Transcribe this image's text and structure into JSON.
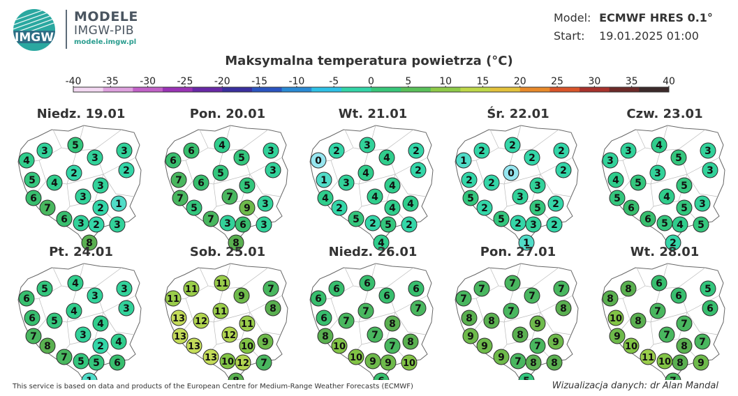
{
  "header": {
    "brand_name": "MODELE",
    "brand_sub": "IMGW-PIB",
    "brand_url": "modele.imgw.pl",
    "logo_text": "IMGW",
    "model_label": "Model:",
    "model_value": "ECMWF HRES 0.1°",
    "start_label": "Start:",
    "start_value": "19.01.2025 01:00"
  },
  "title": "Maksymalna temperatura powietrza (°C)",
  "scale": {
    "ticks": [
      -40,
      -35,
      -30,
      -25,
      -20,
      -15,
      -10,
      -5,
      0,
      5,
      10,
      15,
      20,
      25,
      30,
      35,
      40
    ],
    "colors": [
      "#f3d8f2",
      "#dea1de",
      "#c262c8",
      "#9a33b5",
      "#6828a6",
      "#3a2f9e",
      "#2b54c0",
      "#2a8ad4",
      "#2fc1e6",
      "#33d5a8",
      "#38c77a",
      "#5ac15a",
      "#8fcb4a",
      "#bfd84a",
      "#e3c23c",
      "#e88a2b",
      "#d9552a",
      "#a8322c",
      "#6d2a28",
      "#3b2a2a"
    ]
  },
  "maps": [
    {
      "label": "Niedz. 19.01",
      "values": [
        3,
        5,
        3,
        4,
        3,
        2,
        2,
        5,
        4,
        3,
        6,
        3,
        7,
        2,
        1,
        6,
        3,
        2,
        3,
        8
      ]
    },
    {
      "label": "Pon. 20.01",
      "values": [
        6,
        4,
        3,
        6,
        5,
        3,
        5,
        7,
        6,
        5,
        7,
        7,
        5,
        9,
        3,
        7,
        3,
        6,
        3,
        8
      ]
    },
    {
      "label": "Wt. 21.01",
      "values": [
        2,
        3,
        2,
        0,
        4,
        2,
        4,
        1,
        3,
        4,
        4,
        4,
        2,
        4,
        4,
        5,
        2,
        5,
        2,
        4
      ]
    },
    {
      "label": "Śr. 22.01",
      "values": [
        2,
        2,
        2,
        1,
        2,
        2,
        0,
        2,
        2,
        3,
        5,
        3,
        2,
        5,
        2,
        5,
        2,
        3,
        2,
        1
      ]
    },
    {
      "label": "Czw. 23.01",
      "values": [
        3,
        4,
        3,
        3,
        5,
        3,
        3,
        4,
        5,
        5,
        5,
        4,
        6,
        5,
        3,
        6,
        5,
        4,
        5,
        2
      ]
    },
    {
      "label": "Pt. 24.01",
      "values": [
        5,
        4,
        3,
        6,
        3,
        3,
        4,
        6,
        5,
        4,
        7,
        3,
        8,
        2,
        4,
        7,
        5,
        5,
        6,
        1
      ]
    },
    {
      "label": "Sob. 25.01",
      "values": [
        11,
        11,
        7,
        11,
        9,
        8,
        11,
        13,
        12,
        11,
        13,
        12,
        13,
        10,
        9,
        13,
        10,
        12,
        7,
        8
      ]
    },
    {
      "label": "Niedz. 26.01",
      "values": [
        6,
        6,
        6,
        6,
        6,
        7,
        7,
        6,
        7,
        8,
        8,
        7,
        10,
        7,
        8,
        10,
        9,
        9,
        10,
        6
      ]
    },
    {
      "label": "Pon. 27.01",
      "values": [
        7,
        7,
        7,
        7,
        7,
        8,
        7,
        8,
        8,
        9,
        9,
        8,
        9,
        7,
        9,
        9,
        7,
        8,
        8,
        5
      ]
    },
    {
      "label": "Wt. 28.01",
      "values": [
        8,
        6,
        5,
        8,
        6,
        6,
        7,
        10,
        8,
        7,
        9,
        7,
        10,
        8,
        7,
        11,
        10,
        8,
        9,
        7
      ]
    }
  ],
  "footer": {
    "left": "This service is based on data and products of the European Centre for Medium-Range Weather Forecasts (ECMWF)",
    "right": "Wizualizacja danych: dr Alan Mandal"
  }
}
